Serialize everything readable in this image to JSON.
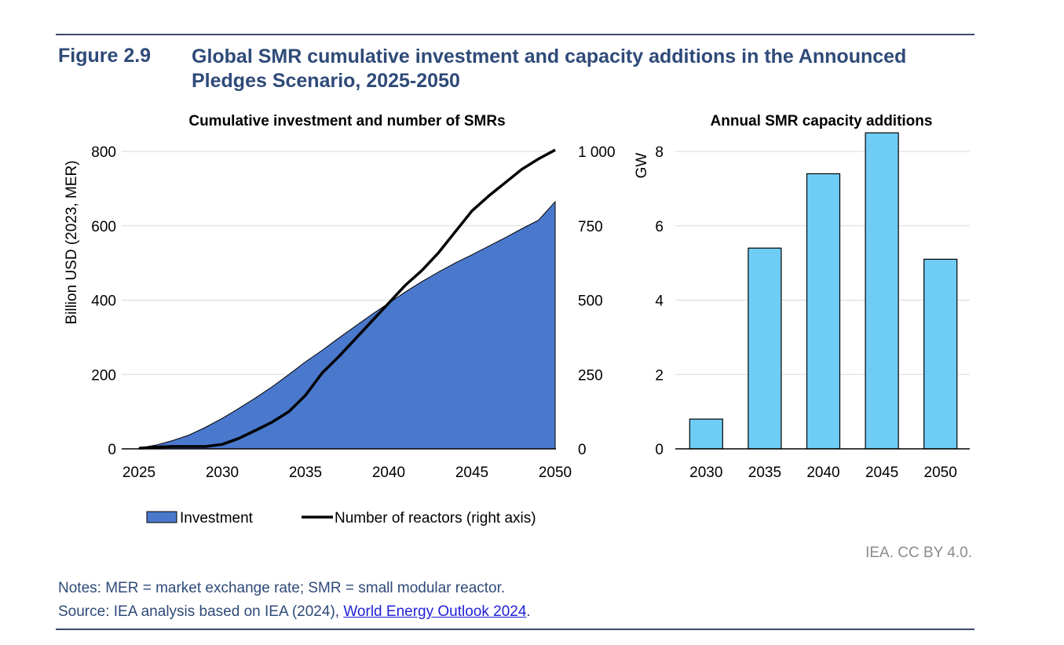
{
  "header": {
    "figure_number": "Figure 2.9",
    "title": "Global SMR cumulative investment and capacity additions in the Announced Pledges Scenario, 2025-2050"
  },
  "credit": "IEA. CC BY 4.0.",
  "notes": {
    "notes_line": "Notes: MER = market exchange rate; SMR = small modular reactor.",
    "source_prefix": "Source: IEA analysis based on IEA (2024), ",
    "source_link": "World Energy Outlook 2024",
    "source_suffix": "."
  },
  "chart_data": [
    {
      "type": "area",
      "title": "Cumulative investment and number of SMRs",
      "ylabel": "Billion USD (2023, MER)",
      "y2label": "",
      "x": [
        2025,
        2026,
        2027,
        2028,
        2029,
        2030,
        2031,
        2032,
        2033,
        2034,
        2035,
        2036,
        2037,
        2038,
        2039,
        2040,
        2041,
        2042,
        2043,
        2044,
        2045,
        2046,
        2047,
        2048,
        2049,
        2050
      ],
      "xticks": [
        "2025",
        "2030",
        "2035",
        "2040",
        "2045",
        "2050"
      ],
      "ylim": [
        0,
        800
      ],
      "yticks": [
        "0",
        "200",
        "400",
        "600",
        "800"
      ],
      "y2lim": [
        0,
        1000
      ],
      "y2ticks": [
        "0",
        "250",
        "500",
        "750",
        "1 000"
      ],
      "series": [
        {
          "name": "Investment",
          "type": "area",
          "axis": "left",
          "color": "#4a78cc",
          "values": [
            2,
            10,
            22,
            37,
            58,
            82,
            109,
            137,
            167,
            200,
            234,
            265,
            298,
            330,
            362,
            392,
            422,
            450,
            476,
            500,
            522,
            545,
            568,
            592,
            615,
            665
          ]
        },
        {
          "name": "Number of reactors (right axis)",
          "type": "line",
          "axis": "right",
          "color": "#000000",
          "values": [
            2,
            6,
            8,
            8,
            8,
            15,
            35,
            62,
            90,
            125,
            180,
            255,
            310,
            370,
            430,
            490,
            550,
            600,
            660,
            730,
            800,
            850,
            895,
            940,
            975,
            1005
          ]
        }
      ],
      "legend_position": "bottom"
    },
    {
      "type": "bar",
      "title": "Annual SMR capacity additions",
      "ylabel": "GW",
      "categories": [
        "2030",
        "2035",
        "2040",
        "2045",
        "2050"
      ],
      "values": [
        0.8,
        5.4,
        7.4,
        8.5,
        5.1
      ],
      "ylim": [
        0,
        8
      ],
      "yticks": [
        "0",
        "2",
        "4",
        "6",
        "8"
      ],
      "color": "#6fcdf5"
    }
  ]
}
